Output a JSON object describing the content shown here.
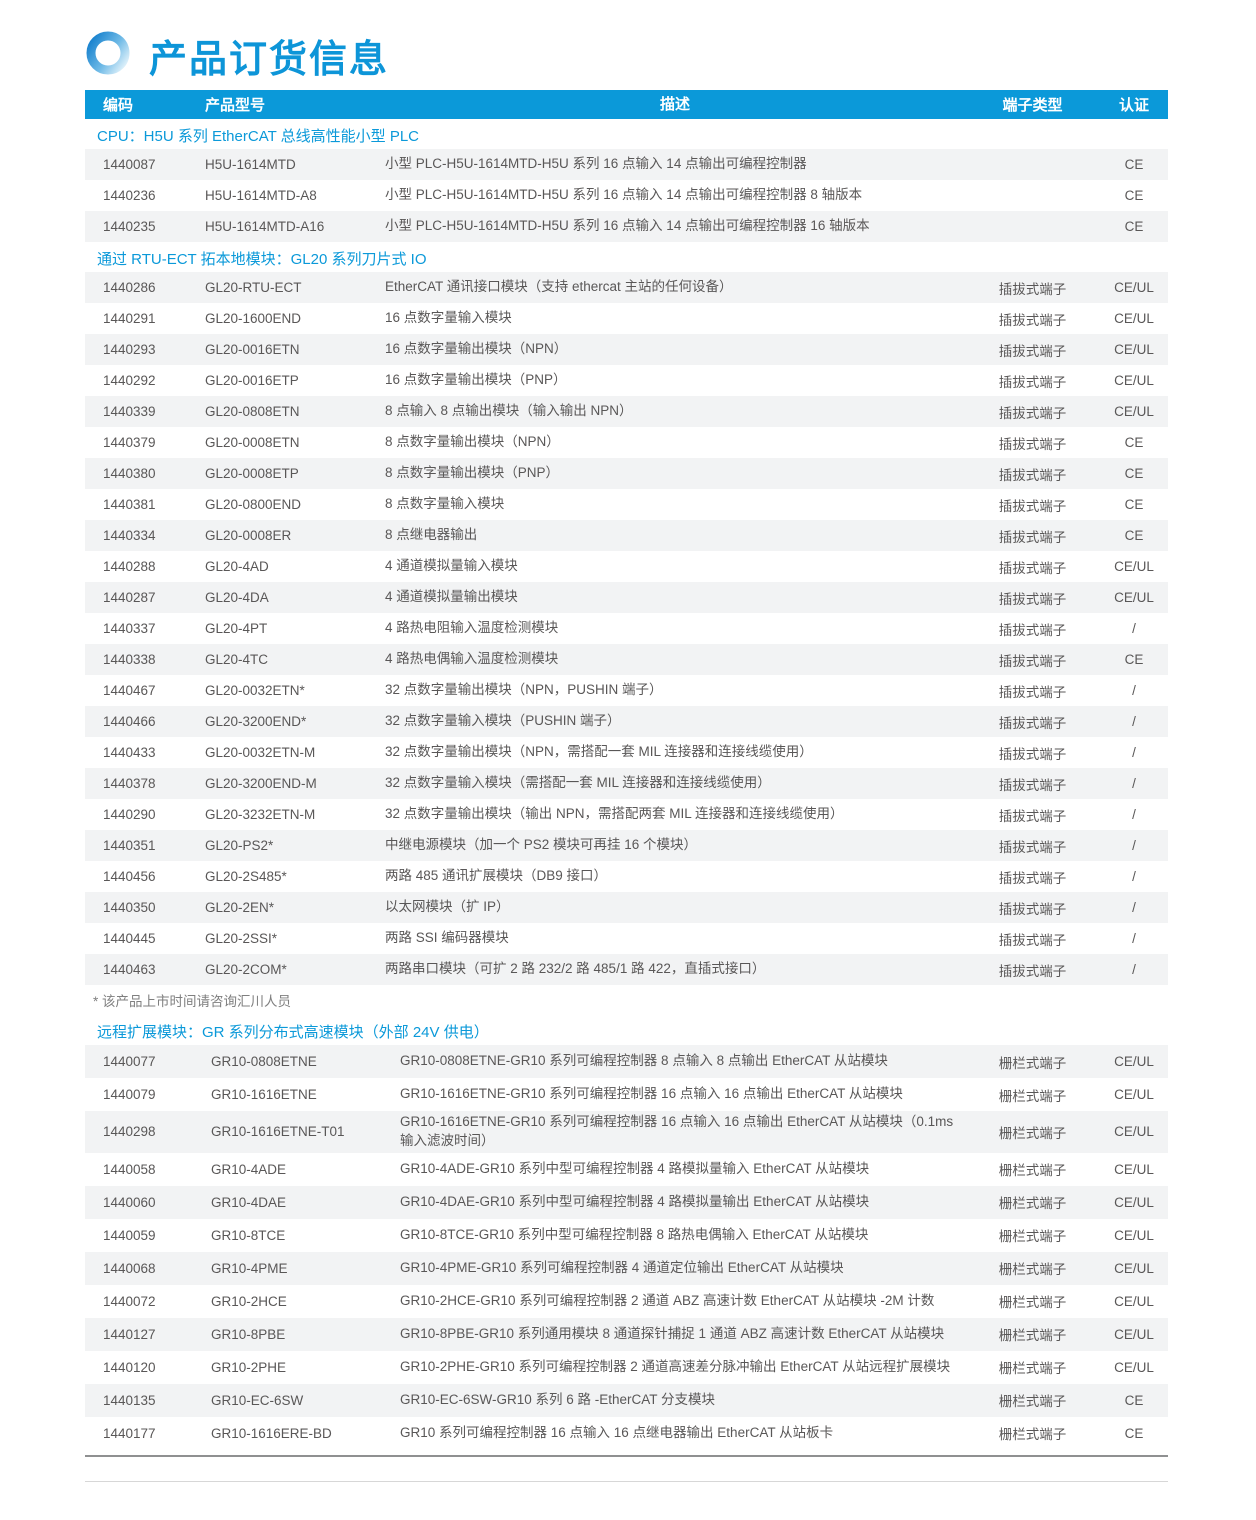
{
  "title": {
    "text": "产品订货信息"
  },
  "colors": {
    "accent": "#0b99d9",
    "stripe": "#f2f3f4",
    "text": "#595757",
    "header_text": "#ffffff"
  },
  "icons": [
    {
      "name": "ring-icon",
      "shape": "gradient-circle-ring",
      "from": "#1b84cf",
      "to": "#d6ecf8"
    }
  ],
  "table": {
    "headers": [
      "编码",
      "产品型号",
      "描述",
      "端子类型",
      "认证"
    ],
    "sections": [
      {
        "id": "h5u",
        "label": "CPU：H5U 系列 EtherCAT 总线高性能小型 PLC",
        "rows": [
          {
            "code": "1440087",
            "model": "H5U-1614MTD",
            "desc": "小型 PLC-H5U-1614MTD-H5U 系列 16 点输入 14 点输出可编程控制器",
            "terminal": "",
            "cert": "CE"
          },
          {
            "code": "1440236",
            "model": "H5U-1614MTD-A8",
            "desc": "小型 PLC-H5U-1614MTD-H5U 系列 16 点输入 14 点输出可编程控制器 8 轴版本",
            "terminal": "",
            "cert": "CE"
          },
          {
            "code": "1440235",
            "model": "H5U-1614MTD-A16",
            "desc": "小型 PLC-H5U-1614MTD-H5U 系列 16 点输入 14 点输出可编程控制器 16 轴版本",
            "terminal": "",
            "cert": "CE"
          }
        ]
      },
      {
        "id": "gl20",
        "label": "通过 RTU-ECT 拓本地模块：GL20 系列刀片式 IO",
        "note": "* 该产品上市时间请咨询汇川人员",
        "rows": [
          {
            "code": "1440286",
            "model": "GL20-RTU-ECT",
            "desc": "EtherCAT 通讯接口模块（支持 ethercat 主站的任何设备）",
            "terminal": "插拔式端子",
            "cert": "CE/UL"
          },
          {
            "code": "1440291",
            "model": "GL20-1600END",
            "desc": "16 点数字量输入模块",
            "terminal": "插拔式端子",
            "cert": "CE/UL"
          },
          {
            "code": "1440293",
            "model": "GL20-0016ETN",
            "desc": "16 点数字量输出模块（NPN）",
            "terminal": "插拔式端子",
            "cert": "CE/UL"
          },
          {
            "code": "1440292",
            "model": "GL20-0016ETP",
            "desc": "16 点数字量输出模块（PNP）",
            "terminal": "插拔式端子",
            "cert": "CE/UL"
          },
          {
            "code": "1440339",
            "model": "GL20-0808ETN",
            "desc": "8 点输入 8 点输出模块（输入输出 NPN）",
            "terminal": "插拔式端子",
            "cert": "CE/UL"
          },
          {
            "code": "1440379",
            "model": "GL20-0008ETN",
            "desc": "8 点数字量输出模块（NPN）",
            "terminal": "插拔式端子",
            "cert": "CE"
          },
          {
            "code": "1440380",
            "model": "GL20-0008ETP",
            "desc": "8 点数字量输出模块（PNP）",
            "terminal": "插拔式端子",
            "cert": "CE"
          },
          {
            "code": "1440381",
            "model": "GL20-0800END",
            "desc": "8 点数字量输入模块",
            "terminal": "插拔式端子",
            "cert": "CE"
          },
          {
            "code": "1440334",
            "model": "GL20-0008ER",
            "desc": "8 点继电器输出",
            "terminal": "插拔式端子",
            "cert": "CE"
          },
          {
            "code": "1440288",
            "model": "GL20-4AD",
            "desc": "4 通道模拟量输入模块",
            "terminal": "插拔式端子",
            "cert": "CE/UL"
          },
          {
            "code": "1440287",
            "model": "GL20-4DA",
            "desc": "4 通道模拟量输出模块",
            "terminal": "插拔式端子",
            "cert": "CE/UL"
          },
          {
            "code": "1440337",
            "model": "GL20-4PT",
            "desc": "4 路热电阻输入温度检测模块",
            "terminal": "插拔式端子",
            "cert": "/"
          },
          {
            "code": "1440338",
            "model": "GL20-4TC",
            "desc": "4 路热电偶输入温度检测模块",
            "terminal": "插拔式端子",
            "cert": "CE"
          },
          {
            "code": "1440467",
            "model": "GL20-0032ETN*",
            "desc": "32 点数字量输出模块（NPN，PUSHIN 端子）",
            "terminal": "插拔式端子",
            "cert": "/"
          },
          {
            "code": "1440466",
            "model": "GL20-3200END*",
            "desc": "32 点数字量输入模块（PUSHIN 端子）",
            "terminal": "插拔式端子",
            "cert": "/"
          },
          {
            "code": "1440433",
            "model": "GL20-0032ETN-M",
            "desc": "32 点数字量输出模块（NPN，需搭配一套 MIL 连接器和连接线缆使用）",
            "terminal": "插拔式端子",
            "cert": "/"
          },
          {
            "code": "1440378",
            "model": "GL20-3200END-M",
            "desc": "32 点数字量输入模块（需搭配一套 MIL 连接器和连接线缆使用）",
            "terminal": "插拔式端子",
            "cert": "/"
          },
          {
            "code": "1440290",
            "model": "GL20-3232ETN-M",
            "desc": "32 点数字量输出模块（输出 NPN，需搭配两套 MIL 连接器和连接线缆使用）",
            "terminal": "插拔式端子",
            "cert": "/"
          },
          {
            "code": "1440351",
            "model": "GL20-PS2*",
            "desc": "中继电源模块（加一个 PS2 模块可再挂 16 个模块）",
            "terminal": "插拔式端子",
            "cert": "/"
          },
          {
            "code": "1440456",
            "model": "GL20-2S485*",
            "desc": "两路 485 通讯扩展模块（DB9 接口）",
            "terminal": "插拔式端子",
            "cert": "/"
          },
          {
            "code": "1440350",
            "model": "GL20-2EN*",
            "desc": "以太网模块（扩 IP）",
            "terminal": "插拔式端子",
            "cert": "/"
          },
          {
            "code": "1440445",
            "model": "GL20-2SSI*",
            "desc": "两路 SSI 编码器模块",
            "terminal": "插拔式端子",
            "cert": "/"
          },
          {
            "code": "1440463",
            "model": "GL20-2COM*",
            "desc": "两路串口模块（可扩 2 路 232/2 路 485/1 路 422，直插式接口）",
            "terminal": "插拔式端子",
            "cert": "/"
          }
        ]
      },
      {
        "id": "gr",
        "label": "远程扩展模块：GR 系列分布式高速模块（外部 24V 供电）",
        "rows": [
          {
            "code": "1440077",
            "model": "GR10-0808ETNE",
            "desc": "GR10-0808ETNE-GR10 系列可编程控制器 8 点输入 8 点输出 EtherCAT 从站模块",
            "terminal": "栅栏式端子",
            "cert": "CE/UL"
          },
          {
            "code": "1440079",
            "model": "GR10-1616ETNE",
            "desc": "GR10-1616ETNE-GR10 系列可编程控制器 16 点输入 16 点输出 EtherCAT 从站模块",
            "terminal": "栅栏式端子",
            "cert": "CE/UL"
          },
          {
            "code": "1440298",
            "model": "GR10-1616ETNE-T01",
            "desc": "GR10-1616ETNE-GR10 系列可编程控制器 16 点输入 16 点输出 EtherCAT 从站模块（0.1ms 输入滤波时间）",
            "terminal": "栅栏式端子",
            "cert": "CE/UL"
          },
          {
            "code": "1440058",
            "model": "GR10-4ADE",
            "desc": "GR10-4ADE-GR10 系列中型可编程控制器 4 路模拟量输入 EtherCAT 从站模块",
            "terminal": "栅栏式端子",
            "cert": "CE/UL"
          },
          {
            "code": "1440060",
            "model": "GR10-4DAE",
            "desc": "GR10-4DAE-GR10 系列中型可编程控制器 4 路模拟量输出 EtherCAT 从站模块",
            "terminal": "栅栏式端子",
            "cert": "CE/UL"
          },
          {
            "code": "1440059",
            "model": "GR10-8TCE",
            "desc": "GR10-8TCE-GR10 系列中型可编程控制器 8 路热电偶输入 EtherCAT 从站模块",
            "terminal": "栅栏式端子",
            "cert": "CE/UL"
          },
          {
            "code": "1440068",
            "model": "GR10-4PME",
            "desc": "GR10-4PME-GR10 系列可编程控制器 4 通道定位输出 EtherCAT 从站模块",
            "terminal": "栅栏式端子",
            "cert": "CE/UL"
          },
          {
            "code": "1440072",
            "model": "GR10-2HCE",
            "desc": "GR10-2HCE-GR10 系列可编程控制器 2 通道 ABZ 高速计数 EtherCAT 从站模块 -2M 计数",
            "terminal": "栅栏式端子",
            "cert": "CE/UL"
          },
          {
            "code": "1440127",
            "model": "GR10-8PBE",
            "desc": "GR10-8PBE-GR10 系列通用模块 8 通道探针捕捉 1 通道 ABZ 高速计数 EtherCAT 从站模块",
            "terminal": "栅栏式端子",
            "cert": "CE/UL"
          },
          {
            "code": "1440120",
            "model": "GR10-2PHE",
            "desc": "GR10-2PHE-GR10 系列可编程控制器 2 通道高速差分脉冲输出 EtherCAT 从站远程扩展模块",
            "terminal": "栅栏式端子",
            "cert": "CE/UL"
          },
          {
            "code": "1440135",
            "model": "GR10-EC-6SW",
            "desc": "GR10-EC-6SW-GR10 系列 6 路 -EtherCAT 分支模块",
            "terminal": "栅栏式端子",
            "cert": "CE"
          },
          {
            "code": "1440177",
            "model": "GR10-1616ERE-BD",
            "desc": "GR10 系列可编程控制器 16 点输入 16 点继电器输出 EtherCAT 从站板卡",
            "terminal": "栅栏式端子",
            "cert": "CE"
          }
        ]
      }
    ]
  }
}
